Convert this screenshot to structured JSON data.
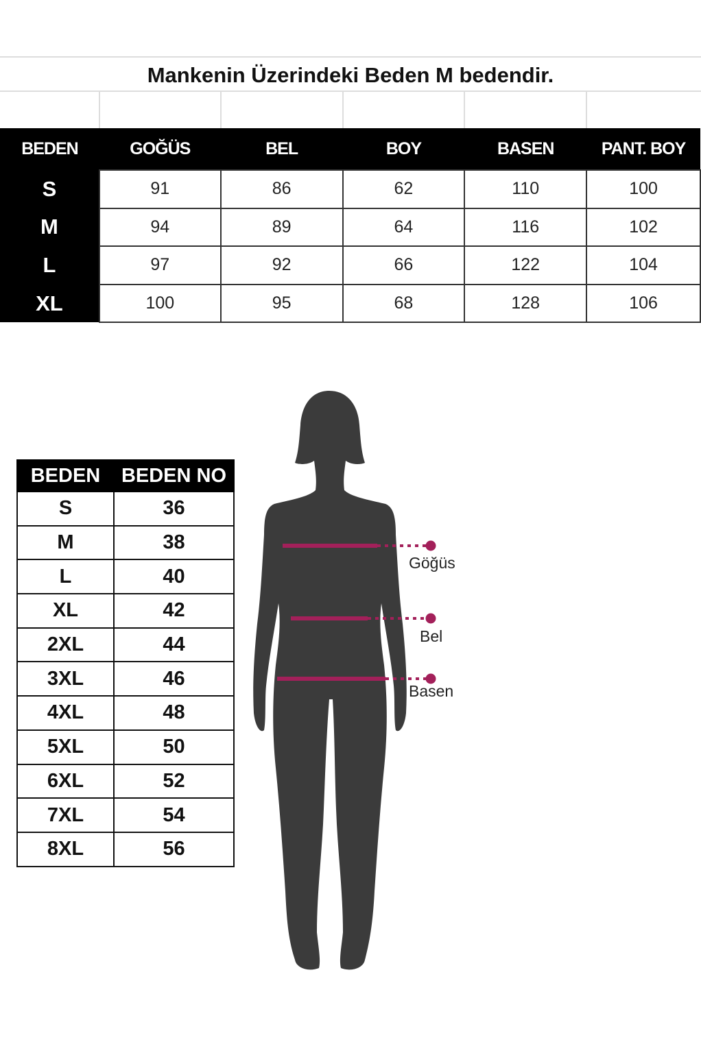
{
  "title": "Mankenin Üzerindeki Beden M bedendir.",
  "size_table": {
    "headers": [
      "BEDEN",
      "GOĞÜS",
      "BEL",
      "BOY",
      "BASEN",
      "PANT. BOY"
    ],
    "rows": [
      [
        "S",
        "91",
        "86",
        "62",
        "110",
        "100"
      ],
      [
        "M",
        "94",
        "89",
        "64",
        "116",
        "102"
      ],
      [
        "L",
        "97",
        "92",
        "66",
        "122",
        "104"
      ],
      [
        "XL",
        "100",
        "95",
        "68",
        "128",
        "106"
      ]
    ]
  },
  "size_no_table": {
    "headers": [
      "BEDEN",
      "BEDEN NO"
    ],
    "rows": [
      [
        "S",
        "36"
      ],
      [
        "M",
        "38"
      ],
      [
        "L",
        "40"
      ],
      [
        "XL",
        "42"
      ],
      [
        "2XL",
        "44"
      ],
      [
        "3XL",
        "46"
      ],
      [
        "4XL",
        "48"
      ],
      [
        "5XL",
        "50"
      ],
      [
        "6XL",
        "52"
      ],
      [
        "7XL",
        "54"
      ],
      [
        "8XL",
        "56"
      ]
    ]
  },
  "figure": {
    "labels": {
      "chest": "Göğüs",
      "waist": "Bel",
      "hip": "Basen"
    },
    "silhouette_color": "#3b3b3b",
    "measure_color": "#a3205a"
  }
}
